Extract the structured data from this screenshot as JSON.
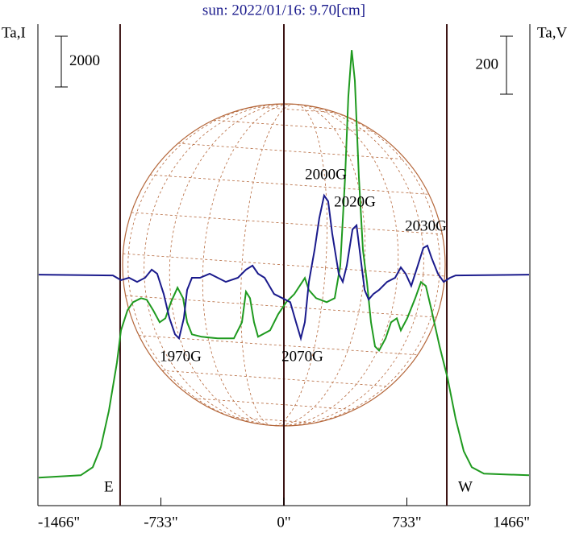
{
  "chart_data": {
    "type": "line",
    "title": "sun: 2022/01/16: 9.70[cm]",
    "ylabel": "Ta,I",
    "y2label": "Ta,V",
    "xlim": [
      -1466,
      1466
    ],
    "xticks": [
      {
        "value": -1466,
        "label": "-1466\""
      },
      {
        "value": -733,
        "label": "-733\""
      },
      {
        "value": 0,
        "label": "0\""
      },
      {
        "value": 733,
        "label": "733\""
      },
      {
        "value": 1466,
        "label": "1466\""
      }
    ],
    "ylim": [
      -1100,
      17880
    ],
    "y2lim": [
      -797,
      864
    ],
    "scale_bars": [
      {
        "value": 2000,
        "axis": "y"
      },
      {
        "value": 200,
        "axis": "y2"
      }
    ],
    "vlines": [
      -976,
      0,
      971
    ],
    "limb_labels": [
      "E",
      "W"
    ],
    "annotations": [
      "1970G",
      "2070G",
      "2000G",
      "2020G",
      "2030G"
    ],
    "series": [
      {
        "name": "Ta,I",
        "color": "#1f9a1f",
        "axis": "y",
        "x": [
          -1461,
          -1211,
          -1139,
          -1091,
          -1043,
          -995,
          -971,
          -932,
          -899,
          -851,
          -817,
          -779,
          -740,
          -706,
          -673,
          -634,
          -601,
          -577,
          -548,
          -490,
          -394,
          -298,
          -250,
          -226,
          -202,
          -178,
          -154,
          -82,
          -34,
          14,
          62,
          125,
          149,
          192,
          255,
          303,
          336,
          365,
          384,
          404,
          423,
          447,
          471,
          495,
          519,
          543,
          567,
          606,
          639,
          673,
          697,
          735,
          783,
          817,
          846,
          880,
          928,
          976,
          1024,
          1072,
          1120,
          1192,
          1461
        ],
        "values": [
          0,
          95,
          413,
          1207,
          2635,
          4540,
          5810,
          6604,
          6922,
          7080,
          7017,
          6604,
          6128,
          6287,
          6922,
          7493,
          7080,
          6128,
          5652,
          5556,
          5493,
          5493,
          6128,
          7334,
          7080,
          6128,
          5556,
          5810,
          6445,
          6922,
          7239,
          7874,
          7398,
          7080,
          6922,
          7080,
          8350,
          11843,
          15018,
          16859,
          15653,
          11843,
          8985,
          7715,
          6128,
          5175,
          5017,
          5493,
          6128,
          6287,
          5810,
          6287,
          7080,
          7715,
          7557,
          6604,
          5175,
          3905,
          2318,
          1048,
          413,
          159,
          95
        ]
      },
      {
        "name": "Ta,V",
        "color": "#1a1a8c",
        "axis": "y2",
        "x": [
          -1461,
          -1019,
          -971,
          -923,
          -875,
          -827,
          -788,
          -755,
          -716,
          -682,
          -649,
          -625,
          -596,
          -577,
          -548,
          -500,
          -442,
          -346,
          -274,
          -226,
          -187,
          -154,
          -115,
          -58,
          -10,
          38,
          72,
          101,
          125,
          149,
          183,
          211,
          240,
          264,
          288,
          327,
          351,
          375,
          409,
          433,
          457,
          481,
          505,
          533,
          567,
          615,
          663,
          697,
          726,
          759,
          798,
          831,
          855,
          880,
          918,
          952,
          990,
          1024,
          1461
        ],
        "values": [
          0,
          -3,
          -19,
          -11,
          -25,
          -11,
          17,
          3,
          -67,
          -150,
          -206,
          -220,
          -150,
          -53,
          -11,
          -11,
          3,
          -25,
          -11,
          17,
          31,
          3,
          -11,
          -67,
          -81,
          -95,
          -164,
          -220,
          -164,
          -25,
          86,
          195,
          273,
          253,
          142,
          3,
          -25,
          31,
          156,
          170,
          58,
          -53,
          -86,
          -67,
          -53,
          -25,
          -11,
          25,
          3,
          -39,
          31,
          92,
          100,
          58,
          3,
          -25,
          -11,
          -3,
          0
        ]
      }
    ]
  }
}
